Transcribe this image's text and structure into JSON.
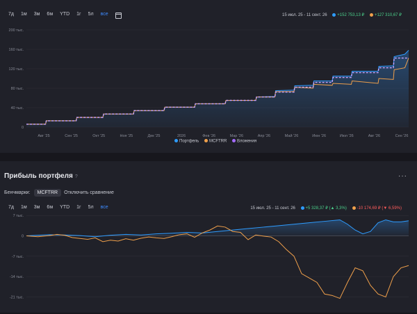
{
  "top": {
    "ranges": [
      "7д",
      "1м",
      "3м",
      "6м",
      "YTD",
      "1г",
      "5л",
      "все"
    ],
    "active_range": "все",
    "date_range": "15 июл. 25 - 11 сент. 26",
    "stat1": "+152 753,13 ₽",
    "stat2": "+127 310,67 ₽",
    "legend": [
      "Портфель",
      "MCFTRR",
      "Вложения"
    ]
  },
  "bottom": {
    "title": "Прибыль портфеля",
    "help": "?",
    "menu": "···",
    "bench_label": "Бенчмарки:",
    "bench_chip": "MCFTRR",
    "bench_off": "Отключить сравнение",
    "ranges": [
      "7д",
      "1м",
      "3м",
      "6м",
      "YTD",
      "1г",
      "5л",
      "все"
    ],
    "active_range": "все",
    "date_range": "15 июл. 25 - 11 сент. 26",
    "stat1": "+5 328,37 ₽",
    "stat1_pct": "(▲ 3,3%)",
    "stat2": "-10 174,69 ₽",
    "stat2_pct": "(▼ 6,59%)"
  },
  "colors": {
    "portfolio": "#2e9cff",
    "mcftrr": "#f0a04b",
    "invest": "#a46bff",
    "accent": "#3d8bff"
  },
  "chart_data": [
    {
      "type": "area",
      "x_labels": [
        "Авг '25",
        "Сен '25",
        "Окт '25",
        "Ноя '25",
        "Дек '25",
        "2026",
        "Фев '26",
        "Мар '26",
        "Апр '26",
        "Май '26",
        "Июн '26",
        "Июл '26",
        "Авг '26",
        "Сен '26"
      ],
      "y_tick_labels": [
        "0",
        "40 тыс.",
        "80 тыс.",
        "120 тыс.",
        "160 тыс.",
        "200 тыс."
      ],
      "ylim": [
        0,
        200000
      ],
      "series": [
        {
          "name": "Портфель",
          "x": [
            0,
            0.05,
            0.052,
            0.13,
            0.132,
            0.2,
            0.202,
            0.28,
            0.282,
            0.36,
            0.362,
            0.44,
            0.442,
            0.52,
            0.522,
            0.6,
            0.602,
            0.65,
            0.652,
            0.7,
            0.702,
            0.75,
            0.752,
            0.8,
            0.802,
            0.85,
            0.852,
            0.92,
            0.922,
            0.96,
            0.962,
            0.99,
            1
          ],
          "values": [
            6000,
            6000,
            13000,
            13000,
            20000,
            20000,
            27000,
            27000,
            34000,
            34000,
            41000,
            41000,
            48000,
            48000,
            55000,
            55000,
            62000,
            63000,
            75000,
            76000,
            85000,
            86000,
            95000,
            95000,
            105000,
            105000,
            115000,
            115000,
            125000,
            126000,
            145000,
            150000,
            158000
          ]
        },
        {
          "name": "MCFTRR",
          "x": [
            0,
            0.05,
            0.052,
            0.13,
            0.132,
            0.2,
            0.202,
            0.28,
            0.282,
            0.36,
            0.362,
            0.44,
            0.442,
            0.52,
            0.522,
            0.6,
            0.602,
            0.65,
            0.652,
            0.7,
            0.702,
            0.75,
            0.752,
            0.8,
            0.802,
            0.85,
            0.852,
            0.92,
            0.922,
            0.96,
            0.962,
            0.99,
            1
          ],
          "values": [
            6000,
            6000,
            13000,
            13000,
            20000,
            20000,
            27000,
            27000,
            34000,
            34000,
            41000,
            41000,
            48000,
            48000,
            55000,
            55000,
            62000,
            62000,
            73000,
            73000,
            82000,
            80000,
            88000,
            86000,
            90000,
            88000,
            95000,
            90000,
            100000,
            98000,
            118000,
            122000,
            142000
          ]
        },
        {
          "name": "Вложения",
          "x": [
            0,
            0.05,
            0.052,
            0.13,
            0.132,
            0.2,
            0.202,
            0.28,
            0.282,
            0.36,
            0.362,
            0.44,
            0.442,
            0.52,
            0.522,
            0.6,
            0.602,
            0.65,
            0.652,
            0.7,
            0.702,
            0.75,
            0.752,
            0.8,
            0.802,
            0.85,
            0.852,
            0.92,
            0.922,
            0.96,
            0.962,
            1
          ],
          "values": [
            6000,
            6000,
            13000,
            13000,
            20000,
            20000,
            27000,
            27000,
            34000,
            34000,
            41000,
            41000,
            48000,
            48000,
            55000,
            55000,
            62000,
            62000,
            72000,
            72000,
            82000,
            82000,
            92000,
            92000,
            102000,
            102000,
            112000,
            112000,
            122000,
            122000,
            142000,
            142000
          ]
        }
      ]
    },
    {
      "type": "line",
      "y_tick_labels": [
        "7 тыс.",
        "0",
        "-7 тыс.",
        "-14 тыс.",
        "-21 тыс."
      ],
      "ylim": [
        -24000,
        8000
      ],
      "series": [
        {
          "name": "Портфель",
          "x": [
            0,
            0.03,
            0.06,
            0.1,
            0.14,
            0.18,
            0.22,
            0.26,
            0.3,
            0.34,
            0.38,
            0.42,
            0.46,
            0.5,
            0.54,
            0.58,
            0.62,
            0.66,
            0.7,
            0.74,
            0.78,
            0.82,
            0.84,
            0.86,
            0.88,
            0.9,
            0.92,
            0.94,
            0.96,
            0.98,
            1
          ],
          "values": [
            0,
            200,
            400,
            300,
            100,
            -300,
            200,
            500,
            300,
            700,
            900,
            1200,
            1000,
            1500,
            2000,
            2500,
            3000,
            3500,
            4000,
            4500,
            5000,
            5500,
            4000,
            2000,
            700,
            1500,
            4500,
            5500,
            4800,
            4800,
            5200
          ]
        },
        {
          "name": "MCFTRR",
          "x": [
            0,
            0.03,
            0.06,
            0.08,
            0.1,
            0.12,
            0.14,
            0.16,
            0.18,
            0.2,
            0.22,
            0.24,
            0.26,
            0.28,
            0.3,
            0.32,
            0.34,
            0.36,
            0.38,
            0.4,
            0.42,
            0.44,
            0.46,
            0.48,
            0.5,
            0.52,
            0.54,
            0.56,
            0.58,
            0.6,
            0.62,
            0.64,
            0.66,
            0.68,
            0.7,
            0.72,
            0.74,
            0.76,
            0.78,
            0.8,
            0.82,
            0.84,
            0.86,
            0.88,
            0.9,
            0.92,
            0.94,
            0.96,
            0.98,
            1
          ],
          "values": [
            0,
            -300,
            100,
            500,
            200,
            -600,
            -900,
            -1200,
            -700,
            -2000,
            -1500,
            -1800,
            -1000,
            -1500,
            -800,
            -400,
            -700,
            -900,
            -300,
            400,
            700,
            -500,
            1000,
            2000,
            3400,
            3000,
            1500,
            1200,
            -1300,
            300,
            -100,
            -400,
            -2000,
            -4700,
            -7000,
            -13000,
            -14500,
            -16000,
            -20000,
            -20500,
            -21500,
            -16000,
            -11000,
            -12000,
            -17000,
            -20000,
            -21000,
            -14000,
            -11000,
            -10200
          ]
        }
      ]
    }
  ]
}
